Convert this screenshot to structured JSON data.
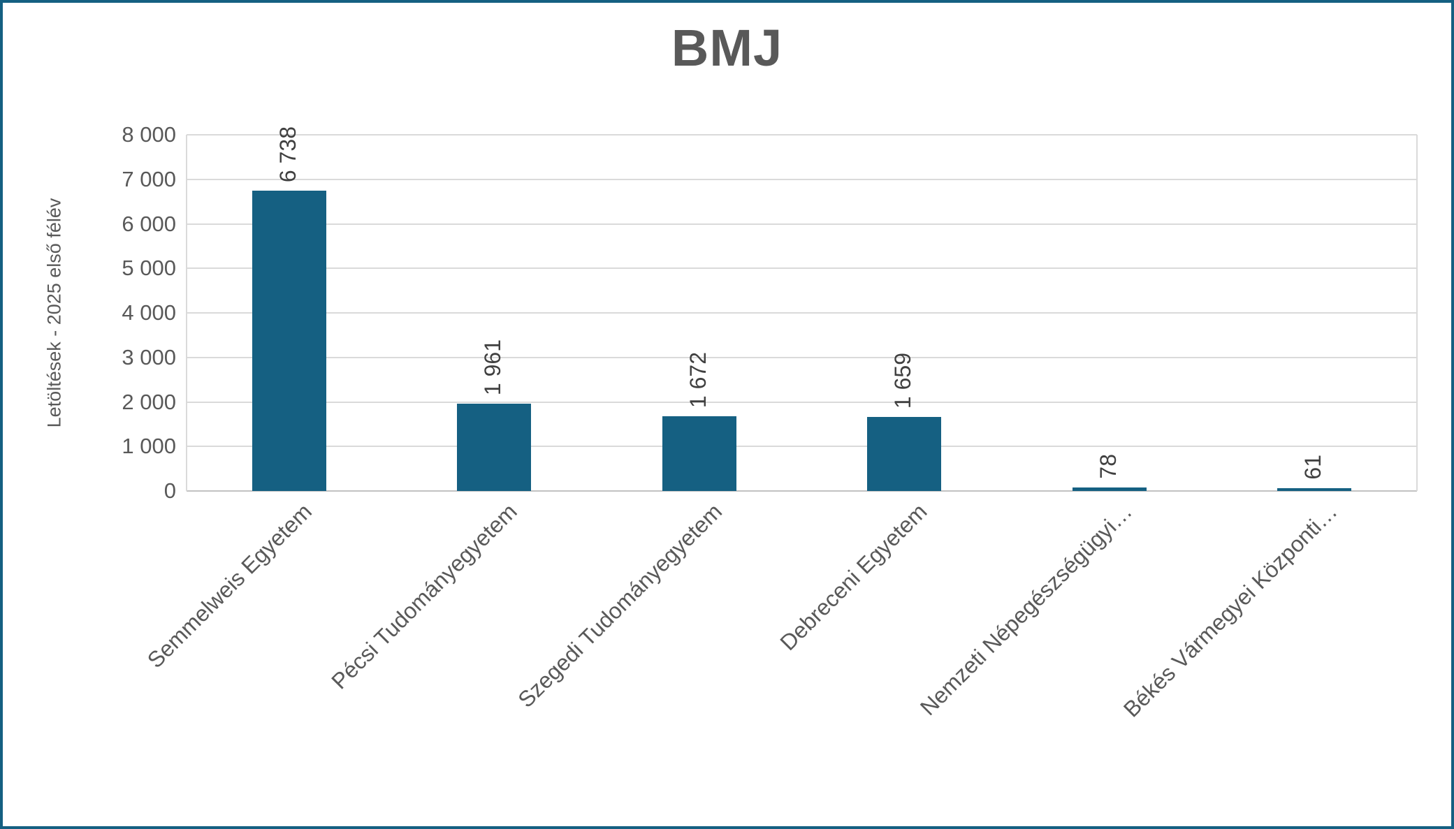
{
  "chart_data": {
    "type": "bar",
    "title": "BMJ",
    "xlabel": "",
    "ylabel": "Letöltések - 2025 első félév",
    "categories": [
      "Semmelweis Egyetem",
      "Pécsi Tudományegyetem",
      "Szegedi Tudományegyetem",
      "Debreceni Egyetem",
      "Nemzeti Népegészségügyi…",
      "Békés Vármegyei Központi…"
    ],
    "values": [
      6738,
      1961,
      1672,
      1659,
      78,
      61
    ],
    "value_labels": [
      "6 738",
      "1 961",
      "1 672",
      "1 659",
      "78",
      "61"
    ],
    "ylim": [
      0,
      8000
    ],
    "ytick_interval": 1000,
    "ytick_labels": [
      "0",
      "1 000",
      "2 000",
      "3 000",
      "4 000",
      "5 000",
      "6 000",
      "7 000",
      "8 000"
    ],
    "grid": true,
    "legend": "none",
    "colors": {
      "bar": "#156082",
      "chart_border": "#156082",
      "gridline": "#DADADA",
      "axis_line": "#C2C2C2",
      "title_text": "#595959",
      "tick_text": "#595959",
      "data_label_text": "#404040",
      "background": "#FFFFFF"
    }
  }
}
